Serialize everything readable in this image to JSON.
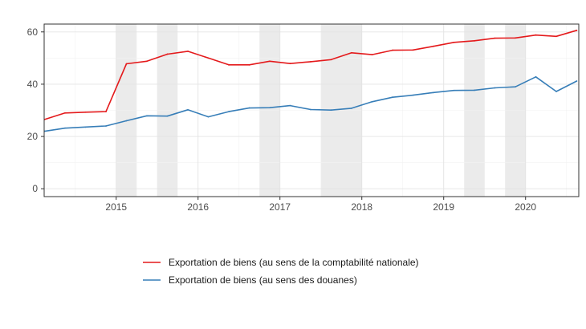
{
  "chart_data": {
    "type": "line",
    "title": "",
    "xlabel": "",
    "ylabel": "",
    "xlim": [
      2014.12,
      2020.65
    ],
    "ylim": [
      -3,
      63
    ],
    "y_ticks": [
      0,
      20,
      40,
      60
    ],
    "x_ticks": [
      2015,
      2016,
      2017,
      2018,
      2019,
      2020
    ],
    "y_tick_labels": [
      "0",
      "20",
      "40",
      "60"
    ],
    "x_tick_labels": [
      "2015",
      "2016",
      "2017",
      "2018",
      "2019",
      "2020"
    ],
    "grid": true,
    "legend_position": "bottom",
    "shaded_periods": [
      [
        2015.0,
        2015.25
      ],
      [
        2015.5,
        2015.75
      ],
      [
        2016.75,
        2017.0
      ],
      [
        2017.5,
        2018.0
      ],
      [
        2019.25,
        2019.5
      ],
      [
        2019.75,
        2020.0
      ]
    ],
    "series": [
      {
        "name": "Exportation de biens (au sens de la comptabilité nationale)",
        "color": "#e41a1c",
        "x": [
          2014.125,
          2014.375,
          2014.625,
          2014.875,
          2015.125,
          2015.375,
          2015.625,
          2015.875,
          2016.125,
          2016.375,
          2016.625,
          2016.875,
          2017.125,
          2017.375,
          2017.625,
          2017.875,
          2018.125,
          2018.375,
          2018.625,
          2018.875,
          2019.125,
          2019.375,
          2019.625,
          2019.875,
          2020.125,
          2020.375,
          2020.625
        ],
        "y": [
          26.5,
          29,
          29.3,
          29.5,
          47.8,
          48.8,
          51.5,
          52.6,
          50.0,
          47.4,
          47.4,
          48.8,
          47.9,
          48.6,
          49.4,
          52.0,
          51.3,
          53.0,
          53.1,
          54.5,
          56.0,
          56.6,
          57.6,
          57.7,
          58.8,
          58.3,
          60.6
        ]
      },
      {
        "name": "Exportation de biens (au sens des douanes)",
        "color": "#377eb8",
        "x": [
          2014.125,
          2014.375,
          2014.625,
          2014.875,
          2015.125,
          2015.375,
          2015.625,
          2015.875,
          2016.125,
          2016.375,
          2016.625,
          2016.875,
          2017.125,
          2017.375,
          2017.625,
          2017.875,
          2018.125,
          2018.375,
          2018.625,
          2018.875,
          2019.125,
          2019.375,
          2019.625,
          2019.875,
          2020.125,
          2020.375,
          2020.625
        ],
        "y": [
          22.0,
          23.2,
          23.6,
          24.0,
          26.0,
          27.9,
          27.8,
          30.2,
          27.5,
          29.5,
          30.9,
          31.0,
          31.8,
          30.3,
          30.1,
          30.8,
          33.3,
          35.0,
          35.8,
          36.8,
          37.6,
          37.7,
          38.6,
          39.0,
          42.8,
          37.2,
          41.2
        ]
      }
    ]
  }
}
